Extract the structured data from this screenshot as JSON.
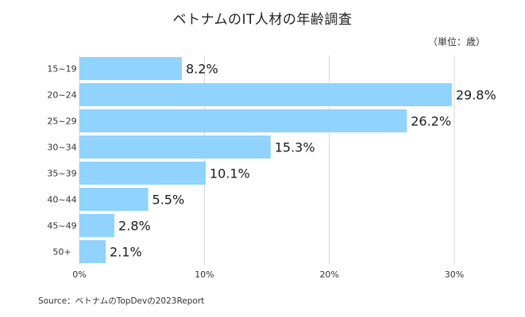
{
  "title": "ベトナムのIT人材の年齢調査",
  "unit_note": "（単位：歳）",
  "source": "Source：ベトナムのTopDevの2023Report",
  "chart_data": {
    "type": "bar",
    "orientation": "horizontal",
    "categories": [
      "15~19",
      "20~24",
      "25~29",
      "30~34",
      "35~39",
      "40~44",
      "45~49",
      "50+"
    ],
    "values": [
      8.2,
      29.8,
      26.2,
      15.3,
      10.1,
      5.5,
      2.8,
      2.1
    ],
    "value_labels": [
      "8.2%",
      "29.8%",
      "26.2%",
      "15.3%",
      "10.1%",
      "5.5%",
      "2.8%",
      "2.1%"
    ],
    "xlim": [
      0,
      30
    ],
    "xticks": [
      0,
      10,
      20,
      30
    ],
    "xtick_labels": [
      "0%",
      "10%",
      "20%",
      "30%"
    ],
    "grid": true,
    "bar_color": "#8fd3fe",
    "grid_color": "#d4d4d4"
  }
}
